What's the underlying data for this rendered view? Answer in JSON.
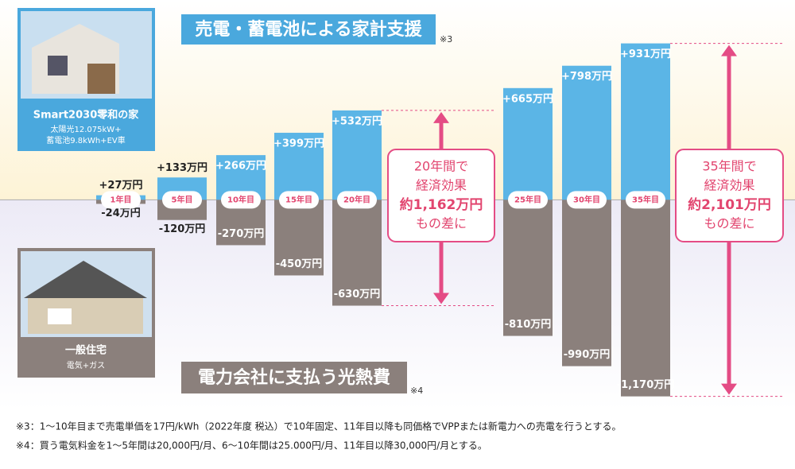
{
  "chart_data": {
    "type": "diverging-bar",
    "categories": [
      "1年目",
      "5年目",
      "10年目",
      "15年目",
      "20年目",
      "25年目",
      "30年目",
      "35年目"
    ],
    "series": [
      {
        "name": "売電・蓄電池による家計支援",
        "color": "#5bb5e6",
        "values": [
          27,
          133,
          266,
          399,
          532,
          665,
          798,
          931
        ],
        "value_labels": [
          "+27万円",
          "+133万円",
          "+266万円",
          "+399万円",
          "+532万円",
          "+665万円",
          "+798万円",
          "+931万円"
        ]
      },
      {
        "name": "電力会社に支払う光熱費",
        "color": "#8b807c",
        "values": [
          -24,
          -120,
          -270,
          -450,
          -630,
          -810,
          -990,
          -1170
        ],
        "value_labels": [
          "-24万円",
          "-120万円",
          "-270万円",
          "-450万円",
          "-630万円",
          "-810万円",
          "-990万円",
          "-1,170万円"
        ]
      }
    ],
    "ylim": [
      -1200,
      1000
    ],
    "title_notes": [
      "※3",
      "※4"
    ],
    "houses": [
      {
        "name": "Smart2030零和の家",
        "details": [
          "太陽光12.075kW+",
          "蓄電池9.8kWh+EV車"
        ]
      },
      {
        "name": "一般住宅",
        "details": [
          "電気+ガス"
        ]
      }
    ],
    "annotations": [
      {
        "lines": [
          "20年間で",
          "経済効果",
          "約1,162万円",
          "もの差に"
        ]
      },
      {
        "lines": [
          "35年間で",
          "経済効果",
          "約2,101万円",
          "もの差に"
        ]
      }
    ],
    "footnotes": [
      "※3：1〜10年目まで売電単価を17円/kWh（2022年度 税込）で10年固定、11年目以降も同価格でVPPまたは新電力への売電を行うとする。",
      "※4：買う電気料金を1〜5年間は20,000円/月、6〜10年間は25.000円/月、11年目以降30,000円/月とする。"
    ]
  }
}
